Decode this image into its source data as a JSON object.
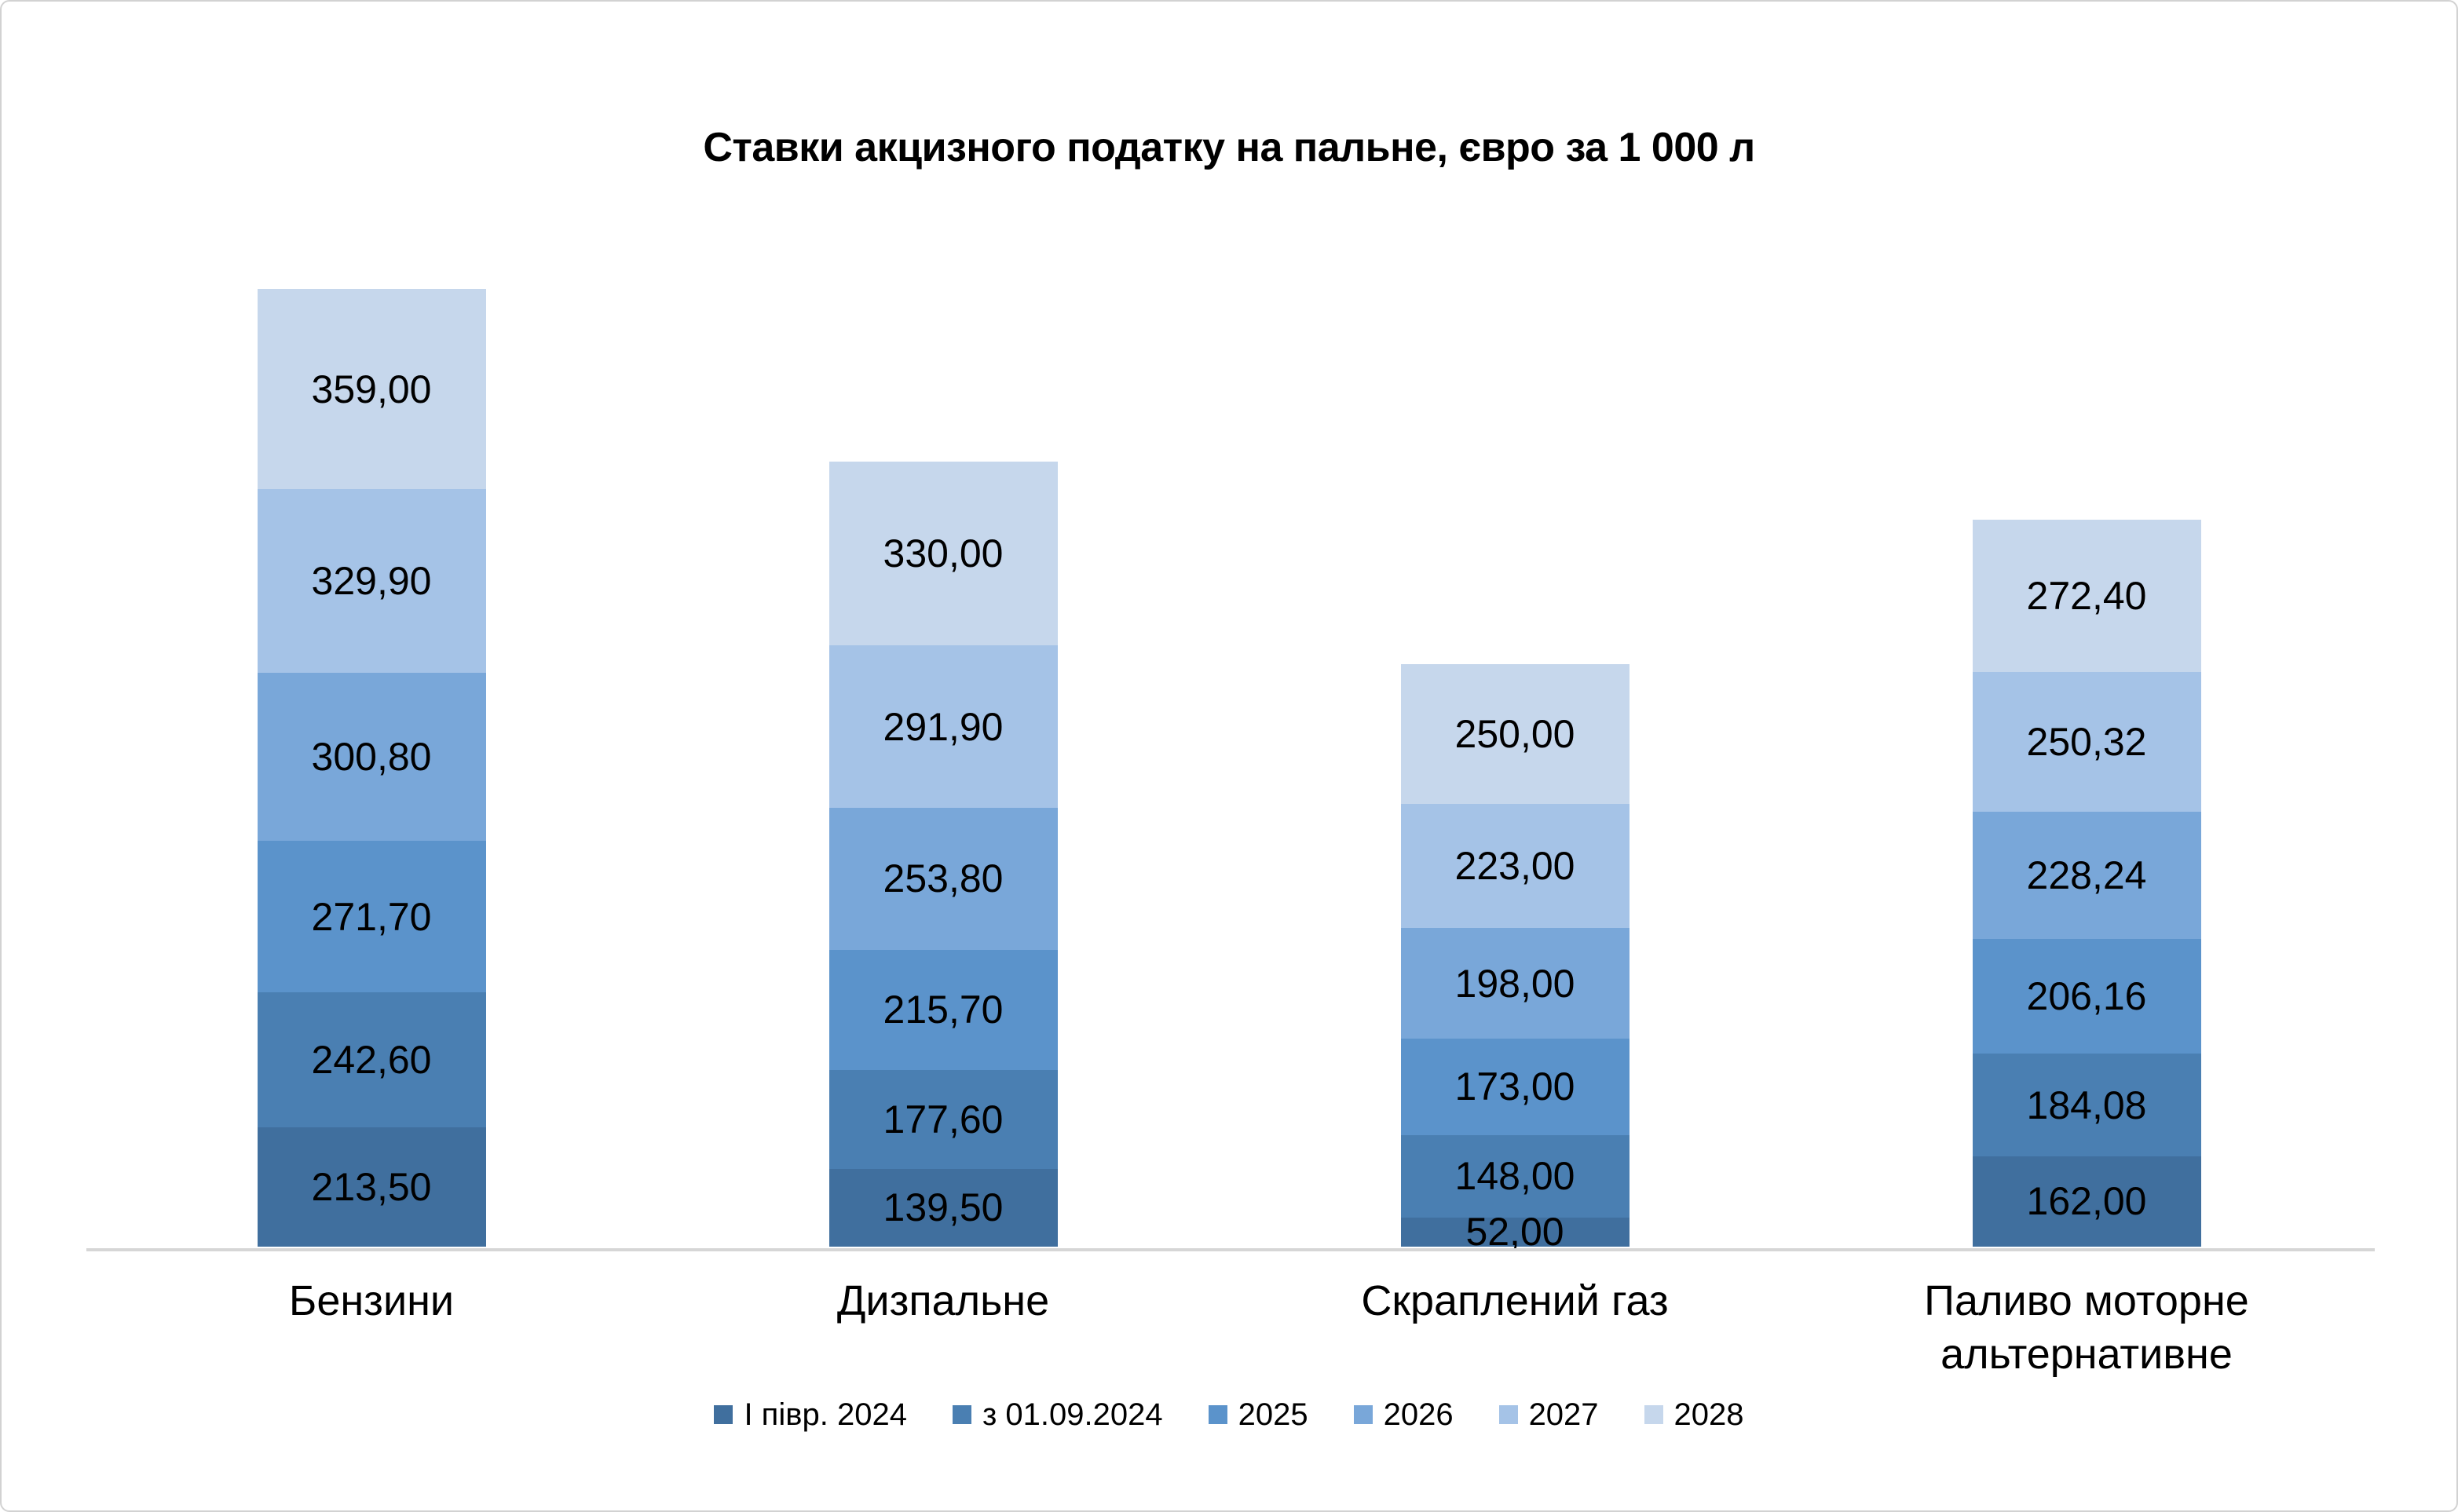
{
  "chart_data": {
    "type": "bar",
    "stacked": true,
    "title": "Ставки акцизного податку на пальне, євро за 1 000 л",
    "grid": false,
    "y_axis_visible": false,
    "legend_position": "bottom",
    "value_decimal_separator": ",",
    "categories": [
      "Бензини",
      "Дизпальне",
      "Скраплений газ",
      "Паливо моторне альтернативне"
    ],
    "series": [
      {
        "name": "І півр. 2024",
        "color": "#406F9E",
        "values": [
          213.5,
          139.5,
          52.0,
          162.0
        ],
        "labels": [
          "213,50",
          "139,50",
          "52,00",
          "162,00"
        ]
      },
      {
        "name": "з 01.09.2024",
        "color": "#4A7FB2",
        "values": [
          242.6,
          177.6,
          148.0,
          184.08
        ],
        "labels": [
          "242,60",
          "177,60",
          "148,00",
          "184,08"
        ]
      },
      {
        "name": "2025",
        "color": "#5B93CB",
        "values": [
          271.7,
          215.7,
          173.0,
          206.16
        ],
        "labels": [
          "271,70",
          "215,70",
          "173,00",
          "206,16"
        ]
      },
      {
        "name": "2026",
        "color": "#79A7D9",
        "values": [
          300.8,
          253.8,
          198.0,
          228.24
        ],
        "labels": [
          "300,80",
          "253,80",
          "198,00",
          "228,24"
        ]
      },
      {
        "name": "2027",
        "color": "#A5C3E7",
        "values": [
          329.9,
          291.9,
          223.0,
          250.32
        ],
        "labels": [
          "329,90",
          "291,90",
          "223,00",
          "250,32"
        ]
      },
      {
        "name": "2028",
        "color": "#C6D7EC",
        "values": [
          359.0,
          330.0,
          250.0,
          272.4
        ],
        "labels": [
          "359,00",
          "330,00",
          "250,00",
          "272,40"
        ]
      }
    ],
    "colors": {
      "text": "#000000",
      "axis_line": "#D6D6D6",
      "background": "#FFFFFF"
    }
  }
}
